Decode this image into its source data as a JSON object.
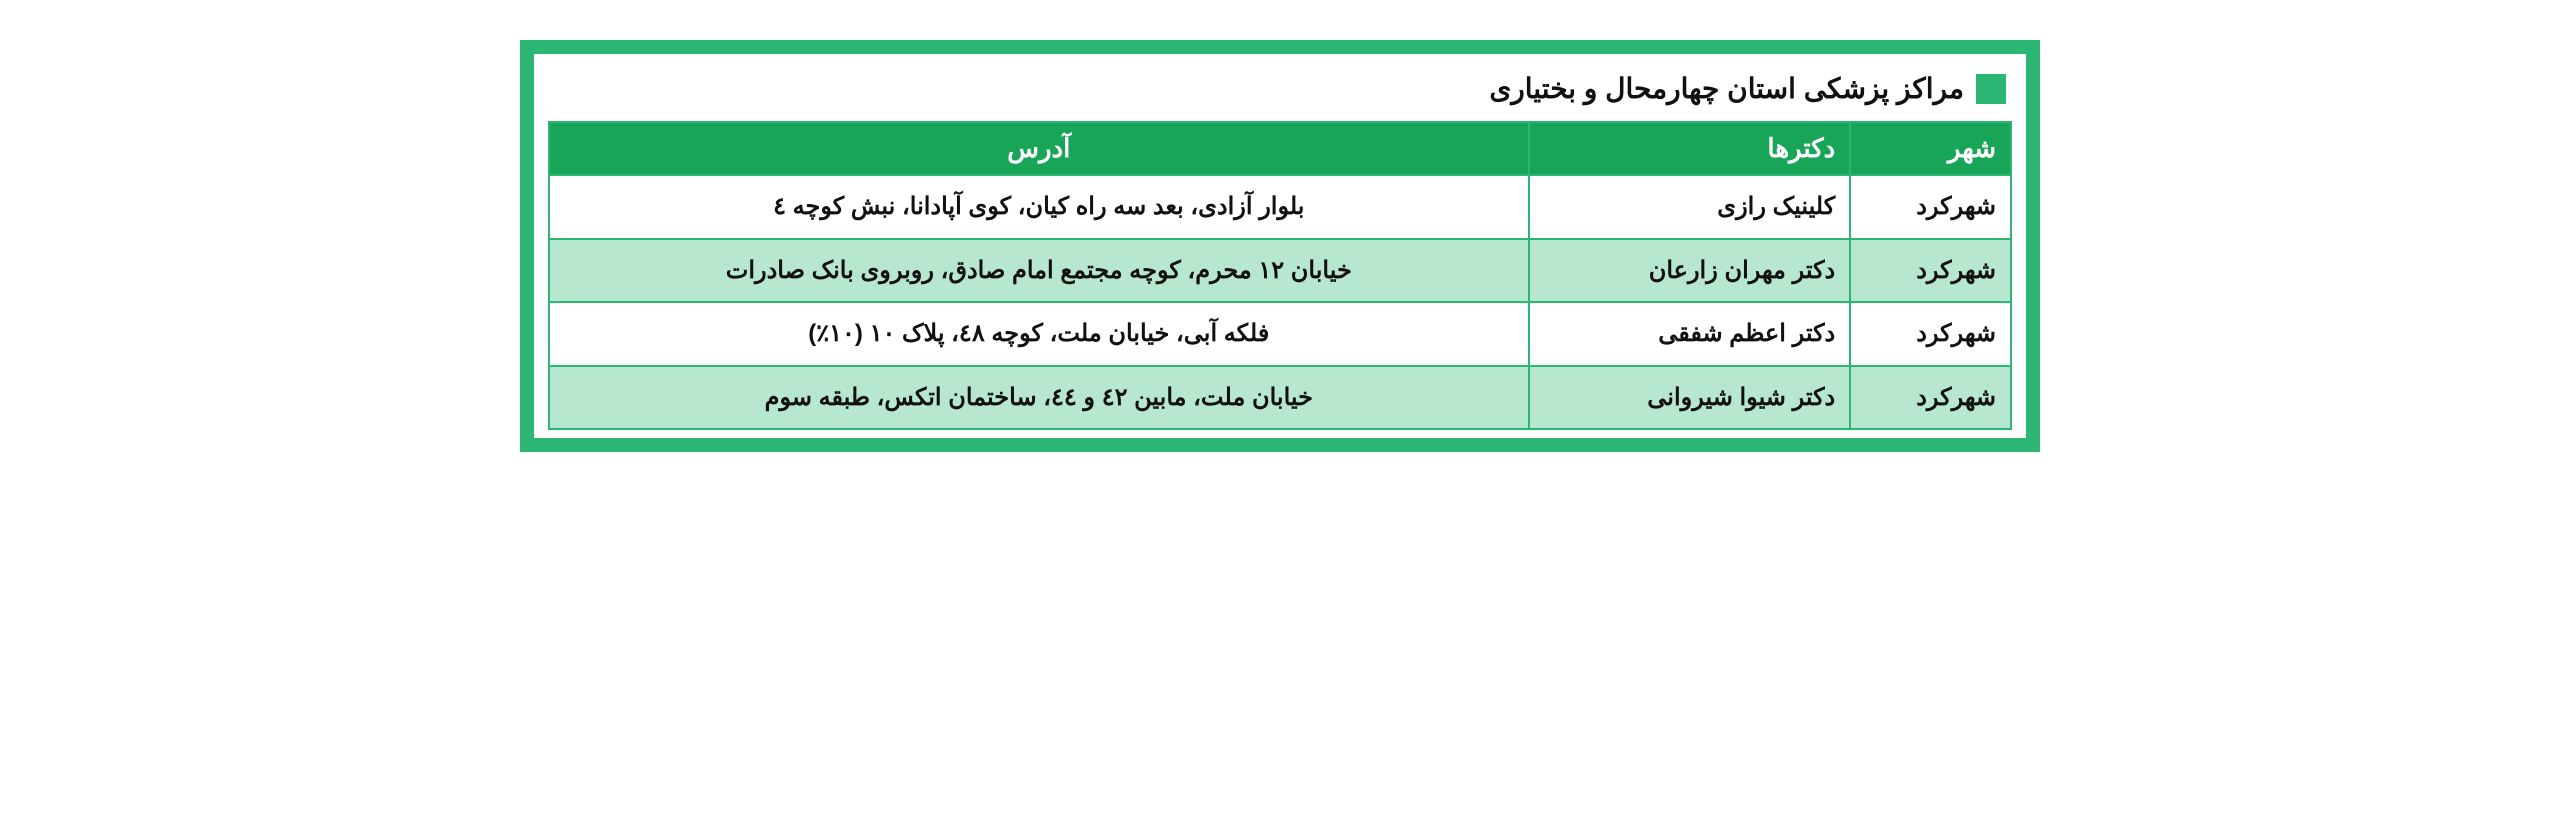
{
  "title": "مراکز پزشکی استان چهارمحال و بختیاری",
  "colors": {
    "frame": "#2bb673",
    "header_bg": "#18a558",
    "header_text": "#ffffff",
    "row_alt_bg": "#b7e7cf",
    "row_bg": "#ffffff",
    "text": "#111111"
  },
  "columns": {
    "city": "شهر",
    "doctor": "دکترها",
    "address": "آدرس"
  },
  "rows": [
    {
      "city": "شهرکرد",
      "doctor": "کلینیک رازی",
      "address": "بلوار آزادی، بعد سه راه کیان، کوی آپادانا، نبش کوچه ٤"
    },
    {
      "city": "شهرکرد",
      "doctor": "دکتر مهران زارعان",
      "address": "خیابان ۱۲ محرم، کوچه مجتمع امام صادق، روبروی بانک صادرات"
    },
    {
      "city": "شهرکرد",
      "doctor": "دکتر اعظم شفقی",
      "address": "فلکه آبی، خیابان ملت، کوچه ٤٨، پلاک ۱۰ (۱۰٪)"
    },
    {
      "city": "شهرکرد",
      "doctor": "دکتر شیوا شیروانی",
      "address": "خیابان ملت، مابین ٤٢ و ٤٤، ساختمان اتکس، طبقه سوم"
    }
  ]
}
